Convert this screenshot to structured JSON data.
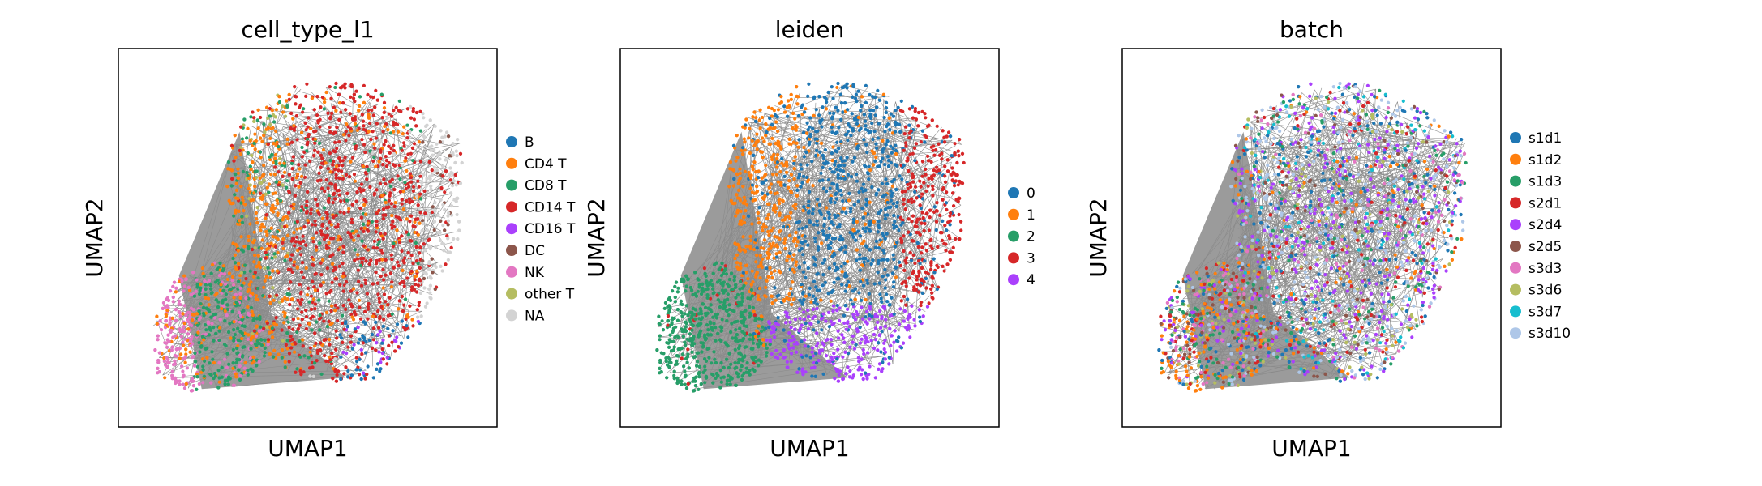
{
  "chart_data": [
    {
      "type": "scatter",
      "title": "cell_type_l1",
      "xlabel": "UMAP1",
      "ylabel": "UMAP2",
      "grid": false,
      "legend": "right",
      "legend_entries": [
        {
          "label": "B",
          "color": "#1f77b4"
        },
        {
          "label": "CD4 T",
          "color": "#ff7f0e"
        },
        {
          "label": "CD8 T",
          "color": "#279e68"
        },
        {
          "label": "CD14 T",
          "color": "#d62728"
        },
        {
          "label": "CD16 T",
          "color": "#aa40fc"
        },
        {
          "label": "DC",
          "color": "#8c564b"
        },
        {
          "label": "NK",
          "color": "#e377c2"
        },
        {
          "label": "other T",
          "color": "#b5bd61"
        },
        {
          "label": "NA",
          "color": "#d3d3d3"
        }
      ]
    },
    {
      "type": "scatter",
      "title": "leiden",
      "xlabel": "UMAP1",
      "ylabel": "UMAP2",
      "grid": false,
      "legend": "right",
      "legend_entries": [
        {
          "label": "0",
          "color": "#1f77b4"
        },
        {
          "label": "1",
          "color": "#ff7f0e"
        },
        {
          "label": "2",
          "color": "#279e68"
        },
        {
          "label": "3",
          "color": "#d62728"
        },
        {
          "label": "4",
          "color": "#aa40fc"
        }
      ]
    },
    {
      "type": "scatter",
      "title": "batch",
      "xlabel": "UMAP1",
      "ylabel": "UMAP2",
      "grid": false,
      "legend": "right",
      "legend_entries": [
        {
          "label": "s1d1",
          "color": "#1f77b4"
        },
        {
          "label": "s1d2",
          "color": "#ff7f0e"
        },
        {
          "label": "s1d3",
          "color": "#279e68"
        },
        {
          "label": "s2d1",
          "color": "#d62728"
        },
        {
          "label": "s2d4",
          "color": "#aa40fc"
        },
        {
          "label": "s2d5",
          "color": "#8c564b"
        },
        {
          "label": "s3d3",
          "color": "#e377c2"
        },
        {
          "label": "s3d6",
          "color": "#b5bd61"
        },
        {
          "label": "s3d7",
          "color": "#17becf"
        },
        {
          "label": "s3d10",
          "color": "#aec7e8"
        }
      ]
    }
  ]
}
